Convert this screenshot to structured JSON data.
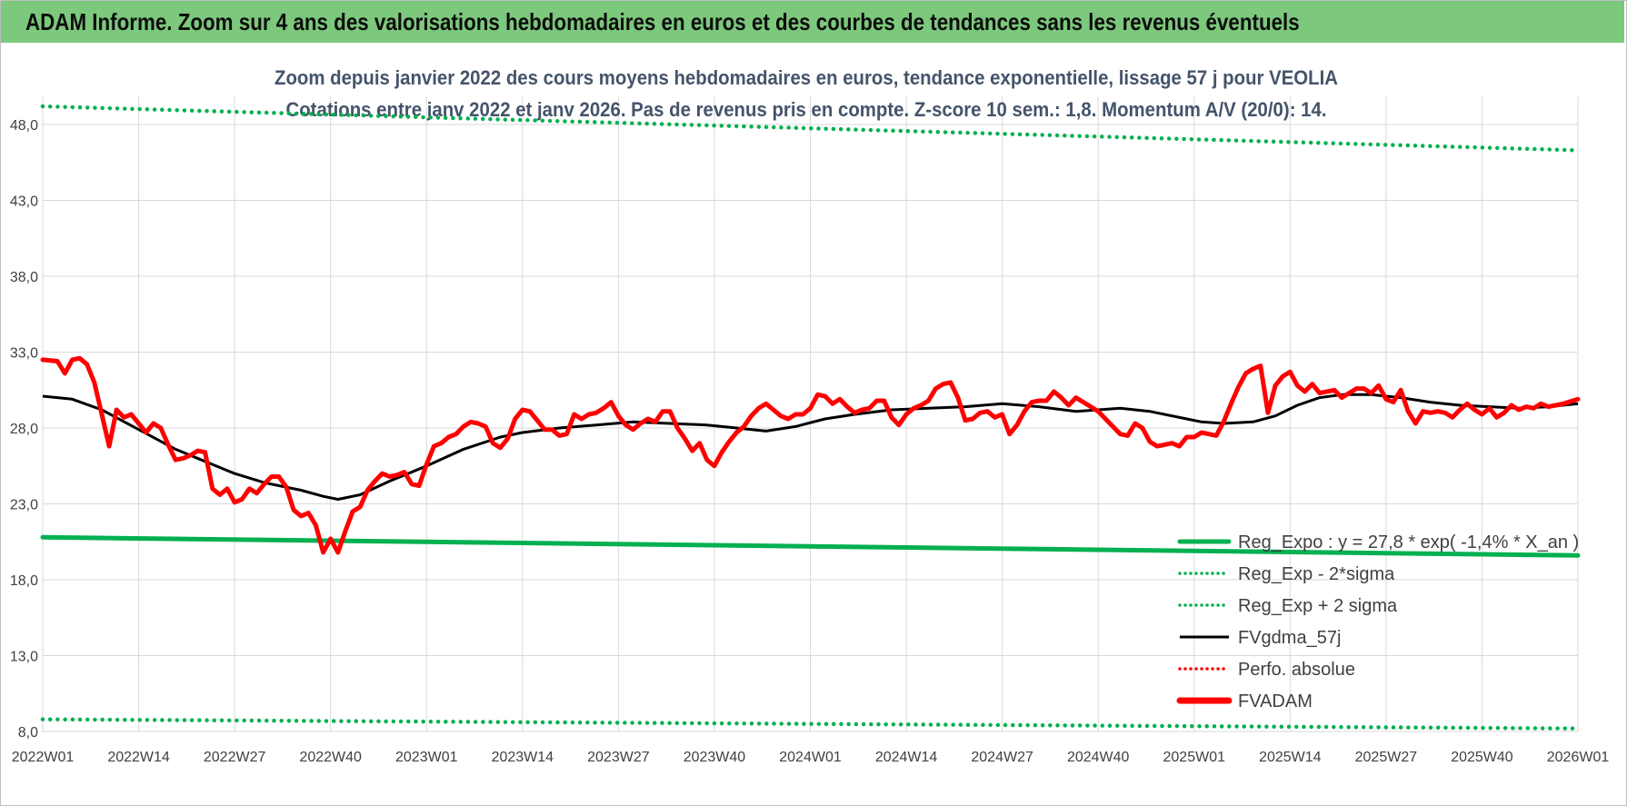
{
  "banner": {
    "title": "ADAM Informe. Zoom sur 4 ans des valorisations hebdomadaires en euros et des courbes de tendances sans les revenus éventuels"
  },
  "colors": {
    "banner": "#7cc87c",
    "green": "#00b050",
    "black": "#000000",
    "red": "#ff0000",
    "grid": "#d9d9d9",
    "subtitle": "#44546a"
  },
  "chart_data": {
    "type": "line",
    "subtitle_lines": [
      "Zoom depuis janvier 2022 des cours moyens hebdomadaires en euros, tendance exponentielle, lissage 57 j pour VEOLIA",
      "Cotations entre janv 2022 et janv 2026. Pas de revenus pris en compte. Z-score 10 sem.: 1,8. Momentum A/V (20/0): 14."
    ],
    "x_tick_labels": [
      "2022W01",
      "2022W14",
      "2022W27",
      "2022W40",
      "2023W01",
      "2023W14",
      "2023W27",
      "2023W40",
      "2024W01",
      "2024W14",
      "2024W27",
      "2024W40",
      "2025W01",
      "2025W14",
      "2025W27",
      "2025W40",
      "2026W01"
    ],
    "y_ticks": [
      8.0,
      13.0,
      18.0,
      23.0,
      28.0,
      33.0,
      38.0,
      43.0,
      48.0
    ],
    "y_tick_labels": [
      "8,0",
      "13,0",
      "18,0",
      "23,0",
      "28,0",
      "33,0",
      "38,0",
      "43,0",
      "48,0"
    ],
    "ylim": [
      8.0,
      49.5
    ],
    "n_weeks": 209,
    "grid": true,
    "legend_position": "bottom-right",
    "series": [
      {
        "name": "Reg_Expo : y = 27,8 * exp( -1,4% *  X_an )",
        "style": "solid-thick",
        "color": "#00b050",
        "points": [
          [
            0,
            20.8
          ],
          [
            208,
            19.6
          ]
        ]
      },
      {
        "name": "Reg_Exp - 2*sigma",
        "style": "dotted",
        "color": "#00b050",
        "points": [
          [
            0,
            8.8
          ],
          [
            208,
            8.2
          ]
        ]
      },
      {
        "name": "Reg_Exp + 2 sigma",
        "style": "dotted",
        "color": "#00b050",
        "points": [
          [
            0,
            49.2
          ],
          [
            208,
            46.3
          ]
        ]
      },
      {
        "name": "FVgdma_57j",
        "style": "solid",
        "color": "#000000",
        "points": [
          [
            0,
            30.1
          ],
          [
            4,
            29.9
          ],
          [
            8,
            29.2
          ],
          [
            13,
            27.9
          ],
          [
            18,
            26.6
          ],
          [
            22,
            25.8
          ],
          [
            26,
            25.0
          ],
          [
            30,
            24.4
          ],
          [
            35,
            23.9
          ],
          [
            38,
            23.5
          ],
          [
            40,
            23.3
          ],
          [
            43,
            23.6
          ],
          [
            47,
            24.5
          ],
          [
            52,
            25.5
          ],
          [
            57,
            26.6
          ],
          [
            62,
            27.4
          ],
          [
            65,
            27.7
          ],
          [
            70,
            28.0
          ],
          [
            75,
            28.2
          ],
          [
            80,
            28.4
          ],
          [
            85,
            28.3
          ],
          [
            90,
            28.2
          ],
          [
            94,
            28.0
          ],
          [
            98,
            27.8
          ],
          [
            102,
            28.1
          ],
          [
            106,
            28.6
          ],
          [
            110,
            28.9
          ],
          [
            115,
            29.2
          ],
          [
            120,
            29.3
          ],
          [
            125,
            29.4
          ],
          [
            130,
            29.6
          ],
          [
            135,
            29.4
          ],
          [
            140,
            29.1
          ],
          [
            146,
            29.3
          ],
          [
            150,
            29.1
          ],
          [
            155,
            28.6
          ],
          [
            157,
            28.4
          ],
          [
            160,
            28.3
          ],
          [
            164,
            28.4
          ],
          [
            167,
            28.8
          ],
          [
            170,
            29.5
          ],
          [
            173,
            30.0
          ],
          [
            176,
            30.2
          ],
          [
            180,
            30.2
          ],
          [
            184,
            30.0
          ],
          [
            188,
            29.7
          ],
          [
            192,
            29.5
          ],
          [
            196,
            29.4
          ],
          [
            200,
            29.3
          ],
          [
            204,
            29.4
          ],
          [
            208,
            29.6
          ]
        ]
      },
      {
        "name": "Perfo. absolue",
        "style": "dotted",
        "color": "#ff0000",
        "points": []
      },
      {
        "name": "FVADAM",
        "style": "solid-thick",
        "color": "#ff0000",
        "points": [
          [
            0,
            32.5
          ],
          [
            2,
            32.4
          ],
          [
            3,
            31.6
          ],
          [
            4,
            32.5
          ],
          [
            5,
            32.6
          ],
          [
            6,
            32.2
          ],
          [
            7,
            31.0
          ],
          [
            8,
            28.9
          ],
          [
            9,
            26.8
          ],
          [
            10,
            29.2
          ],
          [
            11,
            28.7
          ],
          [
            12,
            28.9
          ],
          [
            13,
            28.3
          ],
          [
            14,
            27.7
          ],
          [
            15,
            28.3
          ],
          [
            16,
            28.0
          ],
          [
            17,
            26.9
          ],
          [
            18,
            25.9
          ],
          [
            19,
            26.0
          ],
          [
            20,
            26.2
          ],
          [
            21,
            26.5
          ],
          [
            22,
            26.4
          ],
          [
            23,
            24.0
          ],
          [
            24,
            23.6
          ],
          [
            25,
            24.0
          ],
          [
            26,
            23.1
          ],
          [
            27,
            23.3
          ],
          [
            28,
            24.0
          ],
          [
            29,
            23.7
          ],
          [
            30,
            24.3
          ],
          [
            31,
            24.8
          ],
          [
            32,
            24.8
          ],
          [
            33,
            24.1
          ],
          [
            34,
            22.6
          ],
          [
            35,
            22.2
          ],
          [
            36,
            22.4
          ],
          [
            37,
            21.6
          ],
          [
            38,
            19.8
          ],
          [
            39,
            20.7
          ],
          [
            40,
            19.8
          ],
          [
            41,
            21.2
          ],
          [
            42,
            22.5
          ],
          [
            43,
            22.8
          ],
          [
            44,
            23.9
          ],
          [
            45,
            24.5
          ],
          [
            46,
            25.0
          ],
          [
            47,
            24.8
          ],
          [
            48,
            24.9
          ],
          [
            49,
            25.1
          ],
          [
            50,
            24.3
          ],
          [
            51,
            24.2
          ],
          [
            52,
            25.6
          ],
          [
            53,
            26.8
          ],
          [
            54,
            27.0
          ],
          [
            55,
            27.4
          ],
          [
            56,
            27.6
          ],
          [
            57,
            28.1
          ],
          [
            58,
            28.4
          ],
          [
            59,
            28.3
          ],
          [
            60,
            28.1
          ],
          [
            61,
            27.0
          ],
          [
            62,
            26.7
          ],
          [
            63,
            27.3
          ],
          [
            64,
            28.6
          ],
          [
            65,
            29.2
          ],
          [
            66,
            29.1
          ],
          [
            67,
            28.5
          ],
          [
            68,
            27.9
          ],
          [
            69,
            27.9
          ],
          [
            70,
            27.5
          ],
          [
            71,
            27.6
          ],
          [
            72,
            28.9
          ],
          [
            73,
            28.6
          ],
          [
            74,
            28.9
          ],
          [
            75,
            29.0
          ],
          [
            76,
            29.3
          ],
          [
            77,
            29.7
          ],
          [
            78,
            28.8
          ],
          [
            79,
            28.2
          ],
          [
            80,
            27.9
          ],
          [
            81,
            28.3
          ],
          [
            82,
            28.6
          ],
          [
            83,
            28.4
          ],
          [
            84,
            29.1
          ],
          [
            85,
            29.1
          ],
          [
            86,
            28.0
          ],
          [
            87,
            27.3
          ],
          [
            88,
            26.5
          ],
          [
            89,
            27.0
          ],
          [
            90,
            25.9
          ],
          [
            91,
            25.5
          ],
          [
            92,
            26.4
          ],
          [
            93,
            27.1
          ],
          [
            94,
            27.7
          ],
          [
            95,
            28.1
          ],
          [
            96,
            28.8
          ],
          [
            97,
            29.3
          ],
          [
            98,
            29.6
          ],
          [
            99,
            29.2
          ],
          [
            100,
            28.8
          ],
          [
            101,
            28.6
          ],
          [
            102,
            28.9
          ],
          [
            103,
            28.9
          ],
          [
            104,
            29.3
          ],
          [
            105,
            30.2
          ],
          [
            106,
            30.1
          ],
          [
            107,
            29.6
          ],
          [
            108,
            29.9
          ],
          [
            109,
            29.4
          ],
          [
            110,
            29.0
          ],
          [
            111,
            29.2
          ],
          [
            112,
            29.3
          ],
          [
            113,
            29.8
          ],
          [
            114,
            29.8
          ],
          [
            115,
            28.7
          ],
          [
            116,
            28.2
          ],
          [
            117,
            28.9
          ],
          [
            118,
            29.3
          ],
          [
            119,
            29.5
          ],
          [
            120,
            29.8
          ],
          [
            121,
            30.6
          ],
          [
            122,
            30.9
          ],
          [
            123,
            31.0
          ],
          [
            124,
            30.0
          ],
          [
            125,
            28.5
          ],
          [
            126,
            28.6
          ],
          [
            127,
            29.0
          ],
          [
            128,
            29.1
          ],
          [
            129,
            28.7
          ],
          [
            130,
            28.9
          ],
          [
            131,
            27.6
          ],
          [
            132,
            28.2
          ],
          [
            133,
            29.1
          ],
          [
            134,
            29.7
          ],
          [
            135,
            29.8
          ],
          [
            136,
            29.8
          ],
          [
            137,
            30.4
          ],
          [
            138,
            30.0
          ],
          [
            139,
            29.5
          ],
          [
            140,
            30.0
          ],
          [
            141,
            29.7
          ],
          [
            142,
            29.4
          ],
          [
            143,
            29.1
          ],
          [
            144,
            28.6
          ],
          [
            145,
            28.1
          ],
          [
            146,
            27.6
          ],
          [
            147,
            27.5
          ],
          [
            148,
            28.3
          ],
          [
            149,
            28.0
          ],
          [
            150,
            27.1
          ],
          [
            151,
            26.8
          ],
          [
            152,
            26.9
          ],
          [
            153,
            27.0
          ],
          [
            154,
            26.8
          ],
          [
            155,
            27.4
          ],
          [
            156,
            27.4
          ],
          [
            157,
            27.7
          ],
          [
            158,
            27.6
          ],
          [
            159,
            27.5
          ],
          [
            160,
            28.4
          ],
          [
            161,
            29.6
          ],
          [
            162,
            30.7
          ],
          [
            163,
            31.6
          ],
          [
            164,
            31.9
          ],
          [
            165,
            32.1
          ],
          [
            166,
            29.0
          ],
          [
            167,
            30.8
          ],
          [
            168,
            31.4
          ],
          [
            169,
            31.7
          ],
          [
            170,
            30.8
          ],
          [
            171,
            30.4
          ],
          [
            172,
            30.9
          ],
          [
            173,
            30.3
          ],
          [
            174,
            30.4
          ],
          [
            175,
            30.5
          ],
          [
            176,
            30.0
          ],
          [
            177,
            30.3
          ],
          [
            178,
            30.6
          ],
          [
            179,
            30.6
          ],
          [
            180,
            30.3
          ],
          [
            181,
            30.8
          ],
          [
            182,
            29.9
          ],
          [
            183,
            29.7
          ],
          [
            184,
            30.5
          ],
          [
            185,
            29.1
          ],
          [
            186,
            28.3
          ],
          [
            187,
            29.1
          ],
          [
            188,
            29.0
          ],
          [
            189,
            29.1
          ],
          [
            190,
            29.0
          ],
          [
            191,
            28.7
          ],
          [
            192,
            29.2
          ],
          [
            193,
            29.6
          ],
          [
            194,
            29.2
          ],
          [
            195,
            28.9
          ],
          [
            196,
            29.3
          ],
          [
            197,
            28.7
          ],
          [
            198,
            29.0
          ],
          [
            199,
            29.5
          ],
          [
            200,
            29.2
          ],
          [
            201,
            29.4
          ],
          [
            202,
            29.3
          ],
          [
            203,
            29.6
          ],
          [
            204,
            29.4
          ],
          [
            205,
            29.5
          ],
          [
            206,
            29.6
          ],
          [
            208,
            29.9
          ]
        ]
      }
    ]
  }
}
